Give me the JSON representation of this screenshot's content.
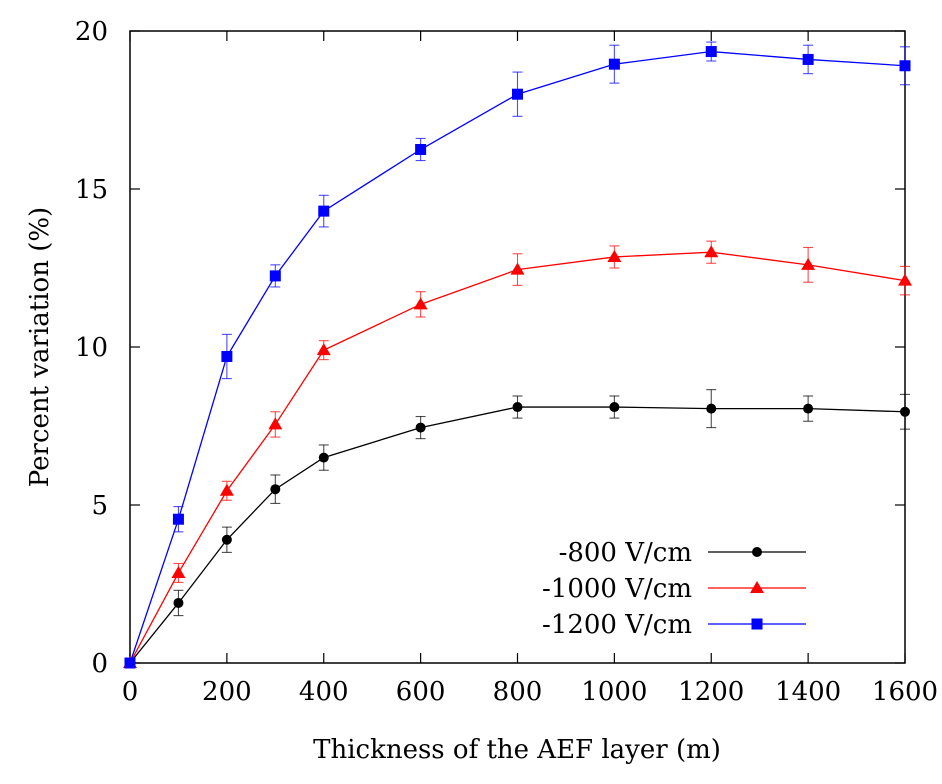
{
  "chart_data": {
    "type": "line",
    "xlabel": "Thickness of the AEF layer (m)",
    "ylabel": "Percent variation (%)",
    "xlim": [
      0,
      1600
    ],
    "ylim": [
      0,
      20
    ],
    "xticks": [
      0,
      200,
      400,
      600,
      800,
      1000,
      1200,
      1400,
      1600
    ],
    "yticks": [
      0,
      5,
      10,
      15,
      20
    ],
    "xtick_labels": [
      "0",
      "200",
      "400",
      "600",
      "800",
      "1000",
      "1200",
      "1400",
      "1600"
    ],
    "ytick_labels": [
      "0",
      "5",
      "10",
      "15",
      "20"
    ],
    "grid": false,
    "legend_position": "bottom-right",
    "x": [
      0,
      100,
      200,
      300,
      400,
      600,
      800,
      1000,
      1200,
      1400,
      1600
    ],
    "series": [
      {
        "name": "-800 V/cm",
        "color": "#000000",
        "marker": "circle",
        "values": [
          0,
          1.9,
          3.9,
          5.5,
          6.5,
          7.45,
          8.1,
          8.1,
          8.05,
          8.05,
          7.95
        ],
        "errors": [
          0,
          0.4,
          0.4,
          0.45,
          0.4,
          0.35,
          0.35,
          0.35,
          0.6,
          0.4,
          0.55
        ]
      },
      {
        "name": "-1000 V/cm",
        "color": "#ff0000",
        "marker": "triangle",
        "values": [
          0,
          2.85,
          5.45,
          7.55,
          9.9,
          11.35,
          12.45,
          12.85,
          13.0,
          12.6,
          12.1
        ],
        "errors": [
          0,
          0.3,
          0.3,
          0.4,
          0.3,
          0.4,
          0.5,
          0.35,
          0.35,
          0.55,
          0.45
        ]
      },
      {
        "name": "-1200 V/cm",
        "color": "#0000ff",
        "marker": "square",
        "values": [
          0,
          4.55,
          9.7,
          12.25,
          14.3,
          16.25,
          18.0,
          18.95,
          19.35,
          19.1,
          18.9
        ],
        "errors": [
          0,
          0.4,
          0.7,
          0.35,
          0.5,
          0.35,
          0.7,
          0.6,
          0.3,
          0.45,
          0.6
        ]
      }
    ]
  }
}
